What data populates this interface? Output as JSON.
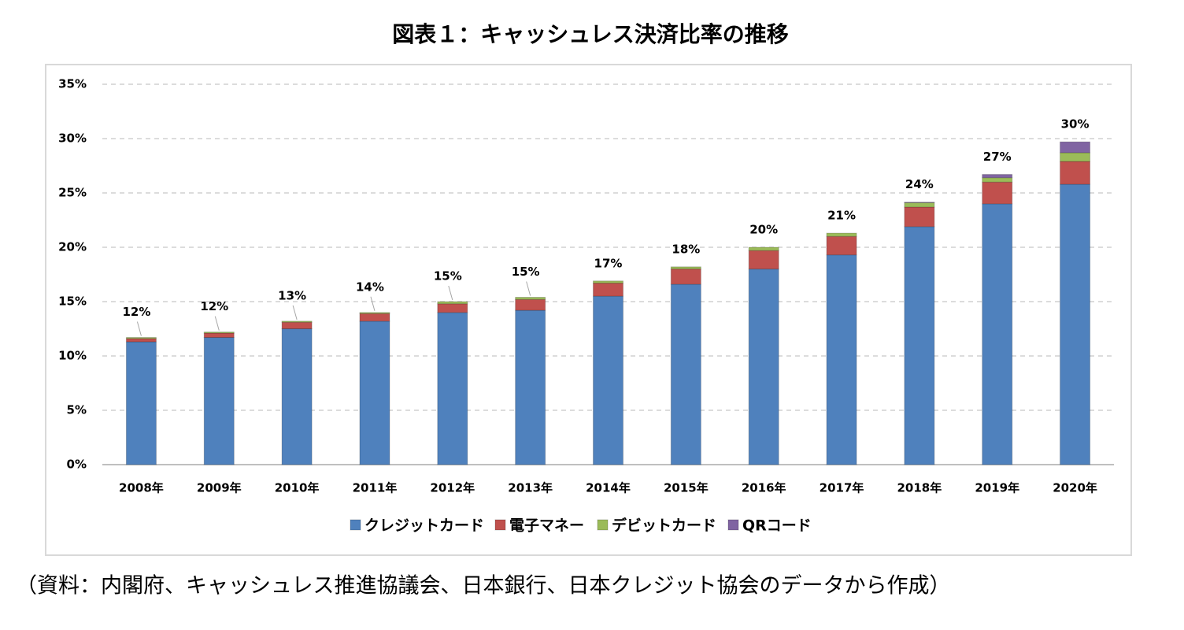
{
  "chart_data": {
    "type": "stacked-bar",
    "title": "図表１：キャッシュレス決済比率の推移",
    "source": "（資料：内閣府、キャッシュレス推進協議会、日本銀行、日本クレジット協会のデータから作成）",
    "categories": [
      "2008年",
      "2009年",
      "2010年",
      "2011年",
      "2012年",
      "2013年",
      "2014年",
      "2015年",
      "2016年",
      "2017年",
      "2018年",
      "2019年",
      "2020年"
    ],
    "series": [
      {
        "name": "クレジットカード",
        "color": "#4f81bd",
        "values": [
          11.3,
          11.7,
          12.5,
          13.2,
          14.0,
          14.2,
          15.5,
          16.6,
          18.0,
          19.3,
          21.9,
          24.0,
          25.8
        ]
      },
      {
        "name": "電子マネー",
        "color": "#c0504d",
        "values": [
          0.3,
          0.4,
          0.6,
          0.7,
          0.8,
          1.0,
          1.2,
          1.4,
          1.7,
          1.7,
          1.8,
          2.0,
          2.1
        ]
      },
      {
        "name": "デビットカード",
        "color": "#9bbb59",
        "values": [
          0.1,
          0.1,
          0.1,
          0.1,
          0.2,
          0.2,
          0.2,
          0.2,
          0.3,
          0.3,
          0.4,
          0.4,
          0.8
        ]
      },
      {
        "name": "QRコード",
        "color": "#8064a2",
        "values": [
          0,
          0,
          0,
          0,
          0,
          0,
          0,
          0,
          0,
          0,
          0.05,
          0.3,
          1.0
        ]
      }
    ],
    "totals": {
      "values": [
        11.7,
        12.2,
        13.2,
        14.0,
        15.0,
        15.4,
        16.9,
        18.2,
        20.0,
        21.3,
        24.15,
        26.7,
        29.7
      ],
      "value_labels": [
        "12%",
        "12%",
        "13%",
        "14%",
        "15%",
        "15%",
        "17%",
        "18%",
        "20%",
        "21%",
        "24%",
        "27%",
        "30%"
      ]
    },
    "ylim": [
      0,
      35
    ],
    "yticks": [
      {
        "value": 0,
        "label": "0%"
      },
      {
        "value": 5,
        "label": "5%"
      },
      {
        "value": 10,
        "label": "10%"
      },
      {
        "value": 15,
        "label": "15%"
      },
      {
        "value": 20,
        "label": "20%"
      },
      {
        "value": 25,
        "label": "25%"
      },
      {
        "value": 30,
        "label": "30%"
      },
      {
        "value": 35,
        "label": "35%"
      }
    ],
    "grid": true
  }
}
